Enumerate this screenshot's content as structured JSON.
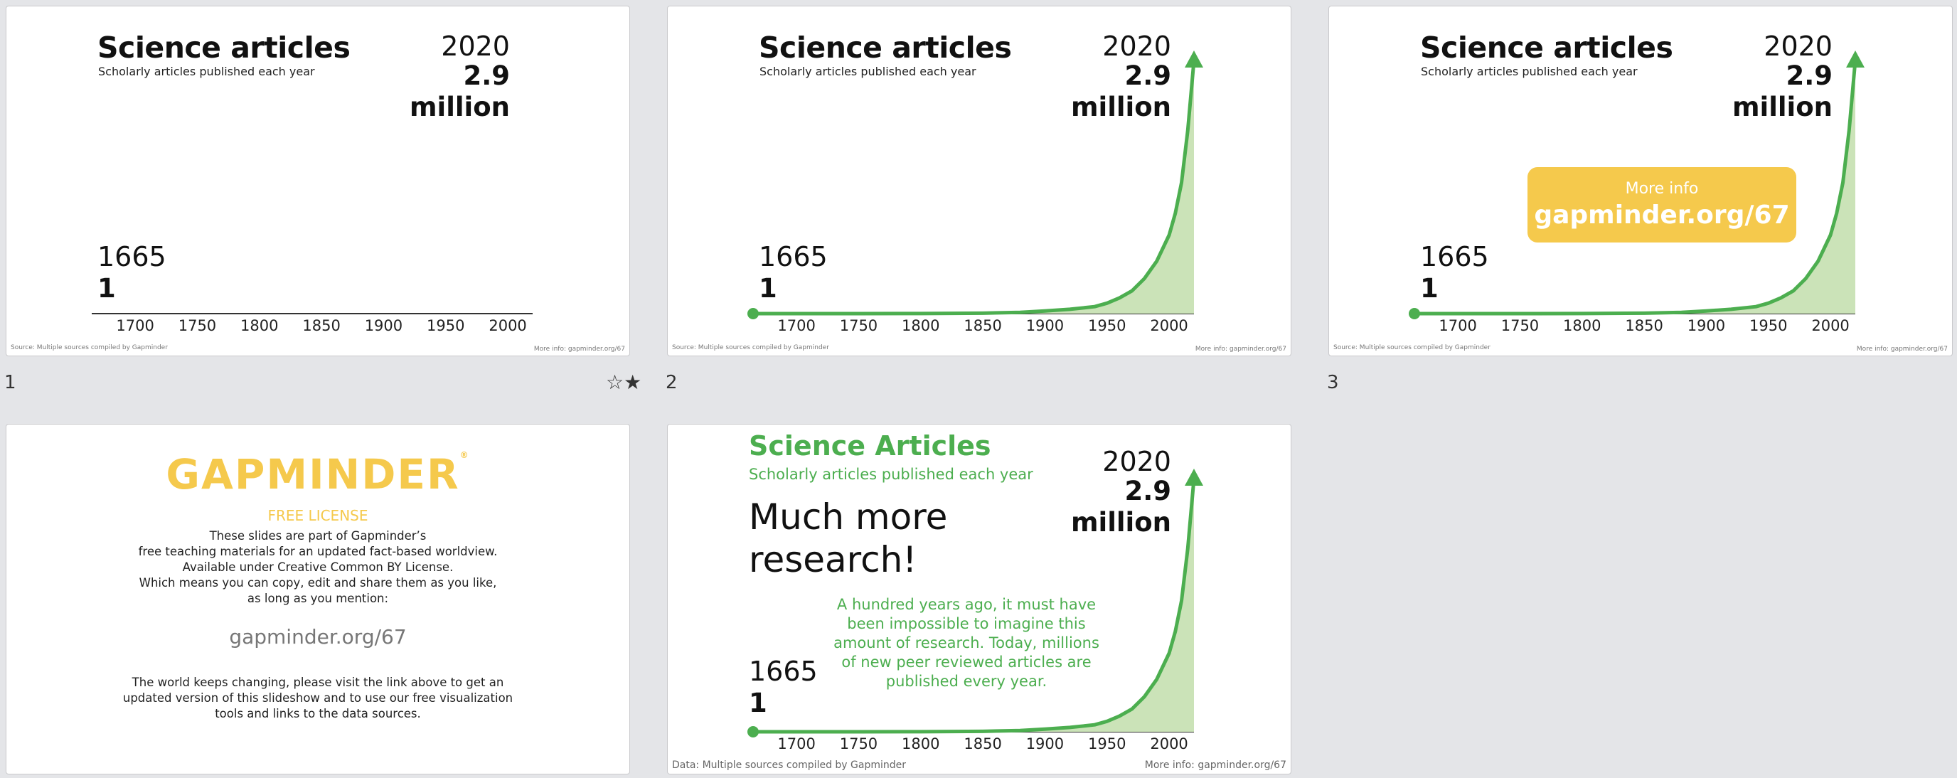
{
  "slides": [
    {
      "number": "1",
      "title": "Science articles",
      "subtitle": "Scholarly articles published each year",
      "end_year": "2020",
      "end_value": "2.9 million",
      "start_year": "1665",
      "start_value": "1",
      "source": "Source: Multiple sources compiled by Gapminder",
      "more_info": "More info: gapminder.org/67",
      "show_curve": false
    },
    {
      "number": "2",
      "title": "Science articles",
      "subtitle": "Scholarly articles published each year",
      "end_year": "2020",
      "end_value": "2.9 million",
      "start_year": "1665",
      "start_value": "1",
      "source": "Source: Multiple sources compiled by Gapminder",
      "more_info": "More info: gapminder.org/67",
      "show_curve": true
    },
    {
      "number": "3",
      "title": "Science articles",
      "subtitle": "Scholarly articles published each year",
      "end_year": "2020",
      "end_value": "2.9 million",
      "start_year": "1665",
      "start_value": "1",
      "source": "Source: Multiple sources compiled by Gapminder",
      "more_info": "More info: gapminder.org/67",
      "info_box": {
        "line1": "More info",
        "line2": "gapminder.org/67"
      },
      "show_curve": true
    },
    {
      "logo": "GAPMINDER",
      "heading": "FREE LICENSE",
      "body_lines": [
        "These slides are part of Gapminder’s",
        "free teaching materials for an updated fact-based worldview.",
        "Available under Creative Common BY License.",
        "Which means you can copy, edit and share them as you like,",
        "as long as you mention:"
      ],
      "link": "gapminder.org/67",
      "footer_lines": [
        "The world keeps changing, please visit the link above to get an",
        "updated version of this slideshow and to use our free visualization",
        "tools and links to the data sources."
      ]
    },
    {
      "title": "Science Articles",
      "subtitle": "Scholarly articles published each year",
      "headline_lines": [
        "Much more",
        "research!"
      ],
      "note": "A hundred years ago, it must have been impossible to imagine this amount of research. Today, millions of new peer reviewed articles are published every year.",
      "end_year": "2020",
      "end_value": "2.9 million",
      "start_year": "1665",
      "start_value": "1",
      "source": "Data: Multiple sources compiled by Gapminder",
      "more_info": "More info: gapminder.org/67",
      "show_curve": true
    }
  ],
  "chart_data": {
    "type": "area",
    "title": "Science articles",
    "subtitle": "Scholarly articles published each year",
    "x_ticks": [
      "1700",
      "1750",
      "1800",
      "1850",
      "1900",
      "1950",
      "2000"
    ],
    "xlim": [
      1665,
      2020
    ],
    "scale": "exponential growth, start and end labelled",
    "x": [
      1665,
      1700,
      1750,
      1800,
      1850,
      1880,
      1900,
      1920,
      1940,
      1950,
      1960,
      1970,
      1980,
      1990,
      2000,
      2005,
      2010,
      2015,
      2020
    ],
    "y": [
      1,
      10,
      100,
      1000,
      5000,
      15000,
      30000,
      50000,
      80000,
      120000,
      180000,
      260000,
      400000,
      600000,
      900000,
      1150000,
      1500000,
      2100000,
      2900000
    ],
    "labels": {
      "start": "1665 1",
      "end": "2020 2.9 million"
    },
    "colors": {
      "line": "#4cae4f",
      "fill": "#cbe3b8",
      "axis": "#333333"
    }
  },
  "ui": {
    "star_icon": "☆★"
  }
}
